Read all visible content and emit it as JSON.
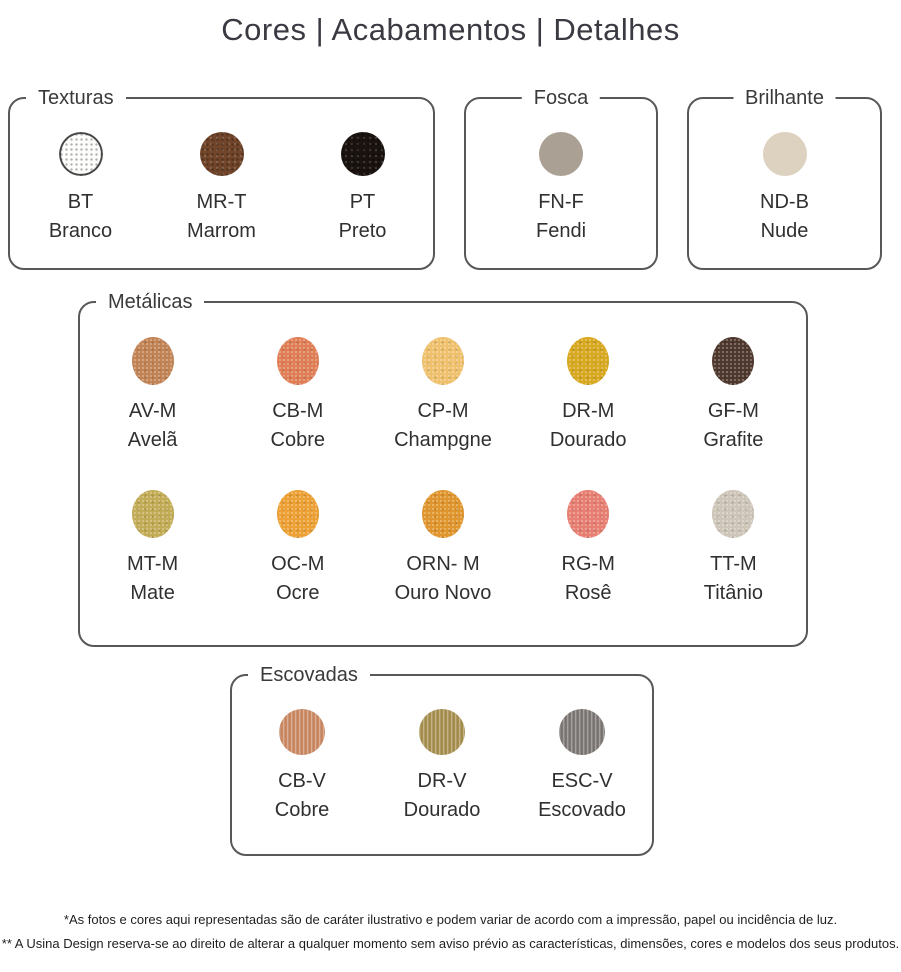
{
  "page": {
    "title": "Cores | Acabamentos | Detalhes",
    "background": "#ffffff",
    "border_color": "#58585a",
    "text_color": "#303030"
  },
  "sections": [
    {
      "id": "texturas",
      "label": "Texturas",
      "finish": "textured",
      "swatches": [
        {
          "code": "BT",
          "name": "Branco",
          "color": "#fdfdfc",
          "outlined": true
        },
        {
          "code": "MR-T",
          "name": "Marrom",
          "color": "#70452a"
        },
        {
          "code": "PT",
          "name": "Preto",
          "color": "#1a130f"
        }
      ]
    },
    {
      "id": "fosca",
      "label": "Fosca",
      "finish": "flat",
      "swatches": [
        {
          "code": "FN-F",
          "name": "Fendi",
          "color": "#aba094"
        }
      ]
    },
    {
      "id": "brilhante",
      "label": "Brilhante",
      "finish": "flat",
      "swatches": [
        {
          "code": "ND-B",
          "name": "Nude",
          "color": "#ddd1bf"
        }
      ]
    },
    {
      "id": "metalicas",
      "label": "Metálicas",
      "finish": "metallic",
      "swatches": [
        {
          "code": "AV-M",
          "name": "Avelã",
          "color": "#c28354"
        },
        {
          "code": "CB-M",
          "name": "Cobre",
          "color": "#e07d54"
        },
        {
          "code": "CP-M",
          "name": "Champgne",
          "color": "#f0c16c"
        },
        {
          "code": "DR-M",
          "name": "Dourado",
          "color": "#d8a81f"
        },
        {
          "code": "GF-M",
          "name": "Grafite",
          "color": "#4e372d"
        },
        {
          "code": "MT-M",
          "name": "Mate",
          "color": "#c2ab55"
        },
        {
          "code": "OC-M",
          "name": "Ocre",
          "color": "#eda033"
        },
        {
          "code": "ORN- M",
          "name": "Ouro Novo",
          "color": "#e0952d"
        },
        {
          "code": "RG-M",
          "name": "Rosê",
          "color": "#e87e72"
        },
        {
          "code": "TT-M",
          "name": "Titânio",
          "color": "#cdc5b8"
        }
      ]
    },
    {
      "id": "escovadas",
      "label": "Escovadas",
      "finish": "brushed",
      "swatches": [
        {
          "code": "CB-V",
          "name": "Cobre",
          "color": "#cd8a62"
        },
        {
          "code": "DR-V",
          "name": "Dourado",
          "color": "#a9904f"
        },
        {
          "code": "ESC-V",
          "name": "Escovado",
          "color": "#7d7875"
        }
      ]
    }
  ],
  "footnotes": [
    "*As fotos e cores aqui representadas são de caráter ilustrativo e podem variar de acordo com a impressão, papel ou incidência de luz.",
    "** A Usina Design reserva-se ao direito de alterar a qualquer momento sem aviso prévio as características, dimensões, cores e modelos dos seus produtos."
  ]
}
